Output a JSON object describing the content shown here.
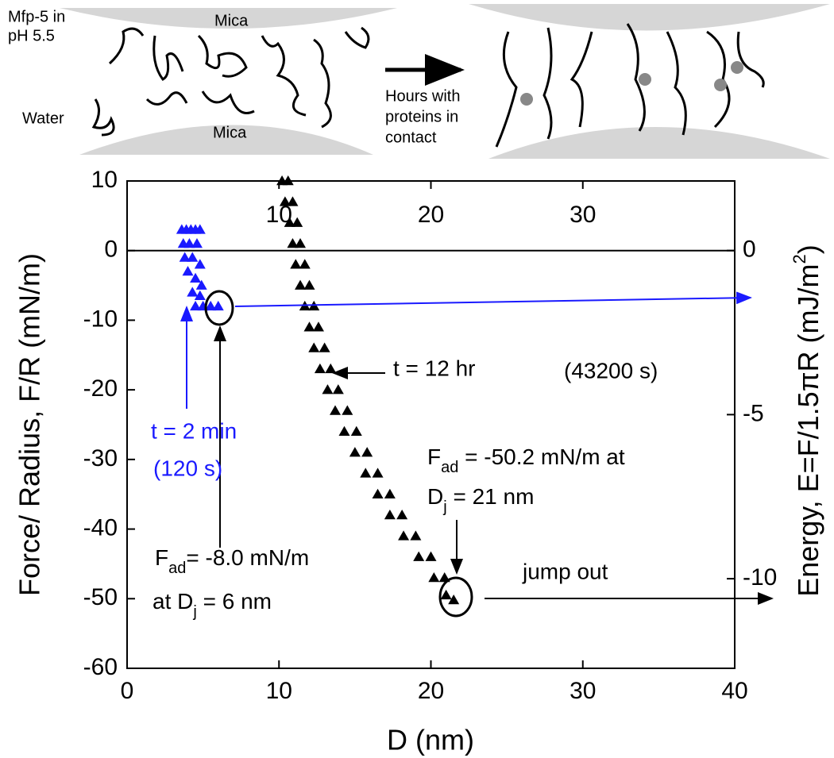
{
  "diagram": {
    "labels": [
      "Mfp-5 in",
      "pH 5.5",
      "Mica",
      "Mica",
      "Water",
      "Hours with",
      "proteins in",
      "contact"
    ]
  },
  "chart_data": {
    "type": "scatter",
    "xlabel": "D (nm)",
    "ylabel": "Force/ Radius, F/R (mN/m)",
    "y2label": [
      "Energy, E=F/1.5πR (mJ/m",
      "2",
      ")"
    ],
    "xlim": [
      0,
      40
    ],
    "xticks": [
      0,
      10,
      20,
      30,
      40
    ],
    "top_xticks": [
      10,
      20,
      30
    ],
    "ylim": [
      -60,
      10
    ],
    "yticks": [
      10,
      0,
      -10,
      -20,
      -30,
      -40,
      -50,
      -60
    ],
    "y2lim": [
      -12.73,
      2.12
    ],
    "y2ticks": [
      0,
      -5,
      -10
    ],
    "series": [
      {
        "color": "#1a1aff",
        "x": [
          3.6,
          3.9,
          4.2,
          4.5,
          4.8,
          3.7,
          4.1,
          4.6,
          3.8,
          4.3,
          4.8,
          4.0,
          4.5,
          4.9,
          4.3,
          4.8,
          4.5,
          5.0,
          5.5,
          6.0
        ],
        "values": [
          3,
          3,
          3,
          3,
          3,
          1,
          1,
          1,
          -1,
          -1,
          -2,
          -3,
          -4,
          -5,
          -6,
          -6.5,
          -8,
          -8,
          -8,
          -8
        ]
      },
      {
        "color": "#000000",
        "x": [
          10.2,
          10.6,
          10.4,
          10.9,
          10.7,
          11.2,
          10.9,
          11.4,
          11.1,
          11.7,
          11.4,
          12.0,
          11.7,
          12.3,
          12.0,
          12.6,
          12.3,
          13.0,
          12.7,
          13.4,
          13.2,
          13.9,
          13.7,
          14.5,
          14.3,
          15.1,
          15.0,
          15.8,
          15.7,
          16.5,
          16.5,
          17.3,
          17.3,
          18.1,
          18.2,
          19.0,
          19.2,
          20.0,
          20.2,
          20.9,
          21.0,
          21.5
        ],
        "values": [
          10,
          10,
          7,
          7,
          4,
          4,
          1,
          1,
          -2,
          -2,
          -5,
          -5,
          -8,
          -8,
          -11,
          -11,
          -14,
          -14,
          -17,
          -17,
          -20,
          -20,
          -23,
          -23,
          -26,
          -26,
          -29,
          -29,
          -32,
          -32,
          -35,
          -35,
          -38,
          -38,
          -41,
          -41,
          -44,
          -44,
          -47,
          -47,
          -49.5,
          -50.2
        ]
      }
    ],
    "annotations": [
      [
        "t = 2 min"
      ],
      [
        "(120 s)"
      ],
      [
        "t = 12 hr"
      ],
      [
        "(43200 s)"
      ],
      [
        "F",
        "ad",
        " = -50.2 mN/m at"
      ],
      [
        "D",
        "j",
        " = 21 nm"
      ],
      [
        "F",
        "ad",
        "= -8.0 mN/m"
      ],
      [
        "at D",
        "j",
        " = 6 nm"
      ],
      [
        "jump out"
      ]
    ]
  }
}
